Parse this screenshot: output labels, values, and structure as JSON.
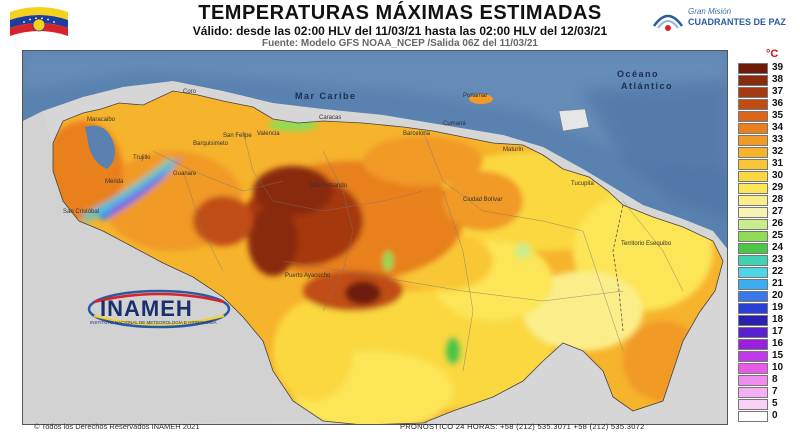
{
  "header": {
    "title": "TEMPERATURAS MÁXIMAS ESTIMADAS",
    "validity": "Válido: desde las 02:00 HLV del 11/03/21 hasta las 02:00 HLV del 12/03/21",
    "source": "Fuente: Modelo GFS NOAA_NCEP /Salida 06Z del 11/03/21"
  },
  "logos": {
    "mision_top": "Gran Misión",
    "mision_main": "CUADRANTES DE PAZ",
    "inameh": "INAMEH",
    "inameh_sub": "INSTITUTO NACIONAL DE METEOROLOGÍA E HIDROLOGÍA"
  },
  "map": {
    "sea_labels": {
      "caribe": "Mar Caribe",
      "oceano": "Océano",
      "atlantico": "Atlántico"
    },
    "zone_label": "Territorio Esequibo",
    "cities": [
      "Coro",
      "Maracaibo",
      "Barquisimeto",
      "San Felipe",
      "Caracas",
      "Barcelona",
      "Cumaná",
      "Maturín",
      "Ciudad Bolívar",
      "Puerto Ayacucho",
      "San Fernando",
      "Guanare",
      "Mérida",
      "San Cristóbal",
      "Trujillo",
      "Valencia",
      "Tucupita",
      "Porlamar"
    ]
  },
  "legend": {
    "unit": "°C",
    "items": [
      {
        "label": "39",
        "color": "#6e1a0a"
      },
      {
        "label": "38",
        "color": "#8a2a0f"
      },
      {
        "label": "37",
        "color": "#a6390f"
      },
      {
        "label": "36",
        "color": "#c14d12"
      },
      {
        "label": "35",
        "color": "#d9661a"
      },
      {
        "label": "34",
        "color": "#e8801f"
      },
      {
        "label": "33",
        "color": "#f19a25"
      },
      {
        "label": "32",
        "color": "#f6b32c"
      },
      {
        "label": "31",
        "color": "#f9c734"
      },
      {
        "label": "30",
        "color": "#fbd840"
      },
      {
        "label": "29",
        "color": "#fce556"
      },
      {
        "label": "28",
        "color": "#fbee8a"
      },
      {
        "label": "27",
        "color": "#f6f3b5"
      },
      {
        "label": "26",
        "color": "#c9ec8c"
      },
      {
        "label": "25",
        "color": "#8fdc55"
      },
      {
        "label": "24",
        "color": "#4cc64a"
      },
      {
        "label": "23",
        "color": "#3fd2b3"
      },
      {
        "label": "22",
        "color": "#4fd6e6"
      },
      {
        "label": "21",
        "color": "#3aaef0"
      },
      {
        "label": "20",
        "color": "#3a78e8"
      },
      {
        "label": "19",
        "color": "#2a3fd8"
      },
      {
        "label": "18",
        "color": "#2a1fb0"
      },
      {
        "label": "17",
        "color": "#5a1fd0"
      },
      {
        "label": "16",
        "color": "#9a1fe0"
      },
      {
        "label": "15",
        "color": "#c03ae8"
      },
      {
        "label": "10",
        "color": "#e85ae8"
      },
      {
        "label": "8",
        "color": "#f08cf0"
      },
      {
        "label": "7",
        "color": "#f4b0f4"
      },
      {
        "label": "5",
        "color": "#f8d0f8"
      },
      {
        "label": "0",
        "color": "#ffffff"
      }
    ]
  },
  "footer": {
    "copyright": "© Todos los Derechos Reservados INAMEH 2021",
    "phone": "PRONÓSTICO 24 HORAS: +58 (212) 535.3071  +58 (212) 535.3072"
  }
}
